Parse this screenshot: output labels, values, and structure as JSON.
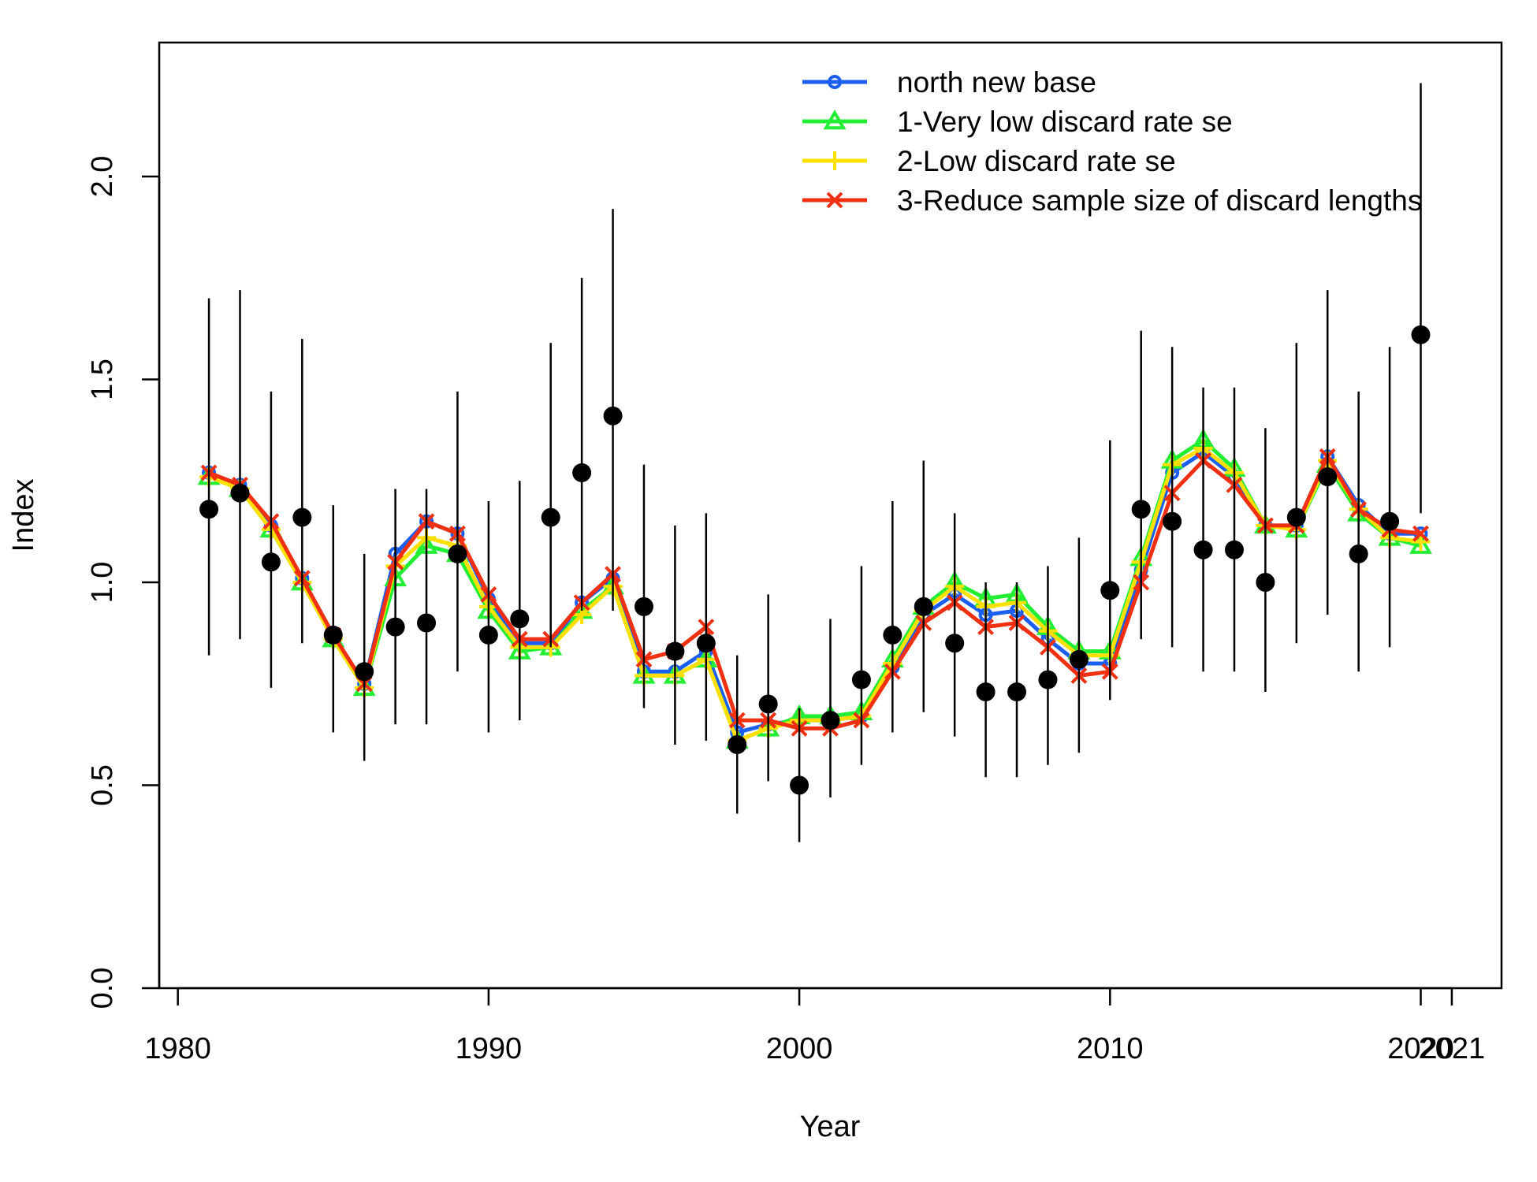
{
  "chart_data": {
    "type": "line",
    "xlabel": "Year",
    "ylabel": "Index",
    "xlim": [
      1979.4,
      2022.6
    ],
    "ylim": [
      0,
      2.33
    ],
    "x_ticks": [
      1980,
      1990,
      2000,
      2010,
      2020,
      2021
    ],
    "x_tick_labels": [
      "1980",
      "1990",
      "2000",
      "2010",
      "2020",
      "2021"
    ],
    "y_ticks": [
      0,
      0.5,
      1,
      1.5,
      2
    ],
    "y_tick_labels": [
      "0.0",
      "0.5",
      "1.0",
      "1.5",
      "2.0"
    ],
    "grid": false,
    "legend_position": "top-right",
    "observed": {
      "x": [
        1981,
        1982,
        1983,
        1984,
        1985,
        1986,
        1987,
        1988,
        1989,
        1990,
        1991,
        1992,
        1993,
        1994,
        1995,
        1996,
        1997,
        1998,
        1999,
        2000,
        2001,
        2002,
        2003,
        2004,
        2005,
        2006,
        2007,
        2008,
        2009,
        2010,
        2011,
        2012,
        2013,
        2014,
        2015,
        2016,
        2017,
        2018,
        2019,
        2020
      ],
      "y": [
        1.18,
        1.22,
        1.05,
        1.16,
        0.87,
        0.78,
        0.89,
        0.9,
        1.07,
        0.87,
        0.91,
        1.16,
        1.27,
        1.41,
        0.94,
        0.83,
        0.85,
        0.6,
        0.7,
        0.5,
        0.66,
        0.76,
        0.87,
        0.94,
        0.85,
        0.73,
        0.73,
        0.76,
        0.81,
        0.98,
        1.18,
        1.15,
        1.08,
        1.08,
        1.0,
        1.16,
        1.26,
        1.07,
        1.15,
        1.61
      ],
      "lower": [
        0.82,
        0.86,
        0.74,
        0.85,
        0.63,
        0.56,
        0.65,
        0.65,
        0.78,
        0.63,
        0.66,
        0.84,
        0.93,
        0.93,
        0.69,
        0.6,
        0.61,
        0.43,
        0.51,
        0.36,
        0.47,
        0.55,
        0.63,
        0.68,
        0.62,
        0.52,
        0.52,
        0.55,
        0.58,
        0.71,
        0.86,
        0.84,
        0.78,
        0.78,
        0.73,
        0.85,
        0.92,
        0.78,
        0.84,
        1.17
      ],
      "upper": [
        1.7,
        1.72,
        1.47,
        1.6,
        1.19,
        1.07,
        1.23,
        1.23,
        1.47,
        1.2,
        1.25,
        1.59,
        1.75,
        1.92,
        1.29,
        1.14,
        1.17,
        0.82,
        0.97,
        0.69,
        0.91,
        1.04,
        1.2,
        1.3,
        1.17,
        1.0,
        1.0,
        1.04,
        1.11,
        1.35,
        1.62,
        1.58,
        1.48,
        1.48,
        1.38,
        1.59,
        1.72,
        1.47,
        1.58,
        2.23
      ]
    },
    "series": [
      {
        "name": "north new base",
        "color": "#1a5ff0",
        "marker": "circle",
        "x": [
          1981,
          1982,
          1983,
          1984,
          1985,
          1986,
          1987,
          1988,
          1989,
          1990,
          1991,
          1992,
          1993,
          1994,
          1995,
          1996,
          1997,
          1998,
          1999,
          2000,
          2001,
          2002,
          2003,
          2004,
          2005,
          2006,
          2007,
          2008,
          2009,
          2010,
          2011,
          2012,
          2013,
          2014,
          2015,
          2016,
          2017,
          2018,
          2019,
          2020
        ],
        "y": [
          1.27,
          1.24,
          1.14,
          1.01,
          0.87,
          0.75,
          1.07,
          1.15,
          1.12,
          0.96,
          0.85,
          0.85,
          0.95,
          1.01,
          0.78,
          0.78,
          0.83,
          0.63,
          0.65,
          0.66,
          0.66,
          0.67,
          0.79,
          0.92,
          0.97,
          0.92,
          0.93,
          0.86,
          0.8,
          0.8,
          1.03,
          1.27,
          1.32,
          1.26,
          1.14,
          1.14,
          1.31,
          1.19,
          1.12,
          1.12
        ]
      },
      {
        "name": "1-Very low discard rate se",
        "color": "#22ee33",
        "marker": "triangle",
        "x": [
          1981,
          1982,
          1983,
          1984,
          1985,
          1986,
          1987,
          1988,
          1989,
          1990,
          1991,
          1992,
          1993,
          1994,
          1995,
          1996,
          1997,
          1998,
          1999,
          2000,
          2001,
          2002,
          2003,
          2004,
          2005,
          2006,
          2007,
          2008,
          2009,
          2010,
          2011,
          2012,
          2013,
          2014,
          2015,
          2016,
          2017,
          2018,
          2019,
          2020
        ],
        "y": [
          1.26,
          1.23,
          1.13,
          1.0,
          0.86,
          0.74,
          1.01,
          1.09,
          1.07,
          0.93,
          0.83,
          0.84,
          0.93,
          0.99,
          0.77,
          0.77,
          0.81,
          0.61,
          0.64,
          0.67,
          0.67,
          0.68,
          0.81,
          0.94,
          1.0,
          0.96,
          0.97,
          0.89,
          0.83,
          0.83,
          1.06,
          1.3,
          1.35,
          1.28,
          1.14,
          1.13,
          1.29,
          1.17,
          1.11,
          1.09
        ]
      },
      {
        "name": "2-Low discard rate se",
        "color": "#ffe000",
        "marker": "plus",
        "x": [
          1981,
          1982,
          1983,
          1984,
          1985,
          1986,
          1987,
          1988,
          1989,
          1990,
          1991,
          1992,
          1993,
          1994,
          1995,
          1996,
          1997,
          1998,
          1999,
          2000,
          2001,
          2002,
          2003,
          2004,
          2005,
          2006,
          2007,
          2008,
          2009,
          2010,
          2011,
          2012,
          2013,
          2014,
          2015,
          2016,
          2017,
          2018,
          2019,
          2020
        ],
        "y": [
          1.26,
          1.23,
          1.13,
          1.0,
          0.86,
          0.74,
          1.04,
          1.11,
          1.09,
          0.94,
          0.84,
          0.84,
          0.92,
          0.99,
          0.77,
          0.77,
          0.81,
          0.61,
          0.64,
          0.66,
          0.66,
          0.67,
          0.8,
          0.93,
          0.99,
          0.94,
          0.95,
          0.88,
          0.82,
          0.82,
          1.05,
          1.29,
          1.33,
          1.27,
          1.14,
          1.13,
          1.3,
          1.18,
          1.11,
          1.1
        ]
      },
      {
        "name": "3-Reduce sample size of discard lengths",
        "color": "#f03010",
        "marker": "cross",
        "x": [
          1981,
          1982,
          1983,
          1984,
          1985,
          1986,
          1987,
          1988,
          1989,
          1990,
          1991,
          1992,
          1993,
          1994,
          1995,
          1996,
          1997,
          1998,
          1999,
          2000,
          2001,
          2002,
          2003,
          2004,
          2005,
          2006,
          2007,
          2008,
          2009,
          2010,
          2011,
          2012,
          2013,
          2014,
          2015,
          2016,
          2017,
          2018,
          2019,
          2020
        ],
        "y": [
          1.27,
          1.24,
          1.15,
          1.01,
          0.87,
          0.75,
          1.05,
          1.15,
          1.12,
          0.97,
          0.86,
          0.86,
          0.95,
          1.02,
          0.81,
          0.83,
          0.89,
          0.66,
          0.66,
          0.64,
          0.64,
          0.66,
          0.78,
          0.9,
          0.95,
          0.89,
          0.9,
          0.84,
          0.77,
          0.78,
          1.0,
          1.22,
          1.3,
          1.24,
          1.14,
          1.14,
          1.31,
          1.18,
          1.13,
          1.12
        ]
      }
    ]
  }
}
